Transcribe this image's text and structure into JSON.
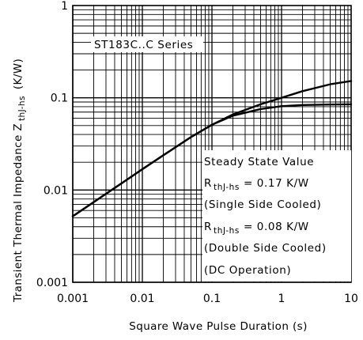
{
  "chart_data": {
    "type": "line",
    "title": "",
    "xlabel": "Square Wave Pulse Duration (s)",
    "ylabel": {
      "text": "Transient Thermal Impedance Z",
      "subscript": "thJ-hs",
      "unit": "(K/W)"
    },
    "x_scale": "log",
    "y_scale": "log",
    "xlim": [
      0.001,
      10
    ],
    "ylim": [
      0.001,
      1
    ],
    "x_ticks": [
      0.001,
      0.01,
      0.1,
      1,
      10
    ],
    "x_tick_labels": [
      "0.001",
      "0.01",
      "0.1",
      "1",
      "10"
    ],
    "y_ticks": [
      0.001,
      0.01,
      0.1,
      1
    ],
    "y_tick_labels": [
      "0.001",
      "0.01",
      "0.1",
      "1"
    ],
    "grid": true,
    "series": [
      {
        "x": [
          0.001,
          0.002,
          0.005,
          0.01,
          0.02,
          0.05,
          0.1,
          0.2,
          0.5,
          1,
          2,
          5,
          10
        ],
        "y": [
          0.0052,
          0.0074,
          0.0118,
          0.0168,
          0.0238,
          0.0375,
          0.051,
          0.064,
          0.0755,
          0.081,
          0.0835,
          0.0845,
          0.085
        ]
      },
      {
        "x": [
          0.001,
          0.002,
          0.005,
          0.01,
          0.02,
          0.05,
          0.1,
          0.2,
          0.5,
          1,
          2,
          5,
          10
        ],
        "y": [
          0.0052,
          0.0074,
          0.0118,
          0.0168,
          0.0238,
          0.0375,
          0.051,
          0.066,
          0.085,
          0.1,
          0.118,
          0.14,
          0.152
        ]
      }
    ],
    "annotations": {
      "series_label": "ST183C..C Series",
      "steady_state_title": "Steady State Value",
      "r_symbol": "R",
      "r_subscript": "thJ-hs",
      "single_value": "= 0.17 K/W",
      "single_note": "(Single Side Cooled)",
      "double_value": "= 0.08 K/W",
      "double_note": "(Double Side Cooled)",
      "dc_note": "(DC Operation)"
    }
  }
}
